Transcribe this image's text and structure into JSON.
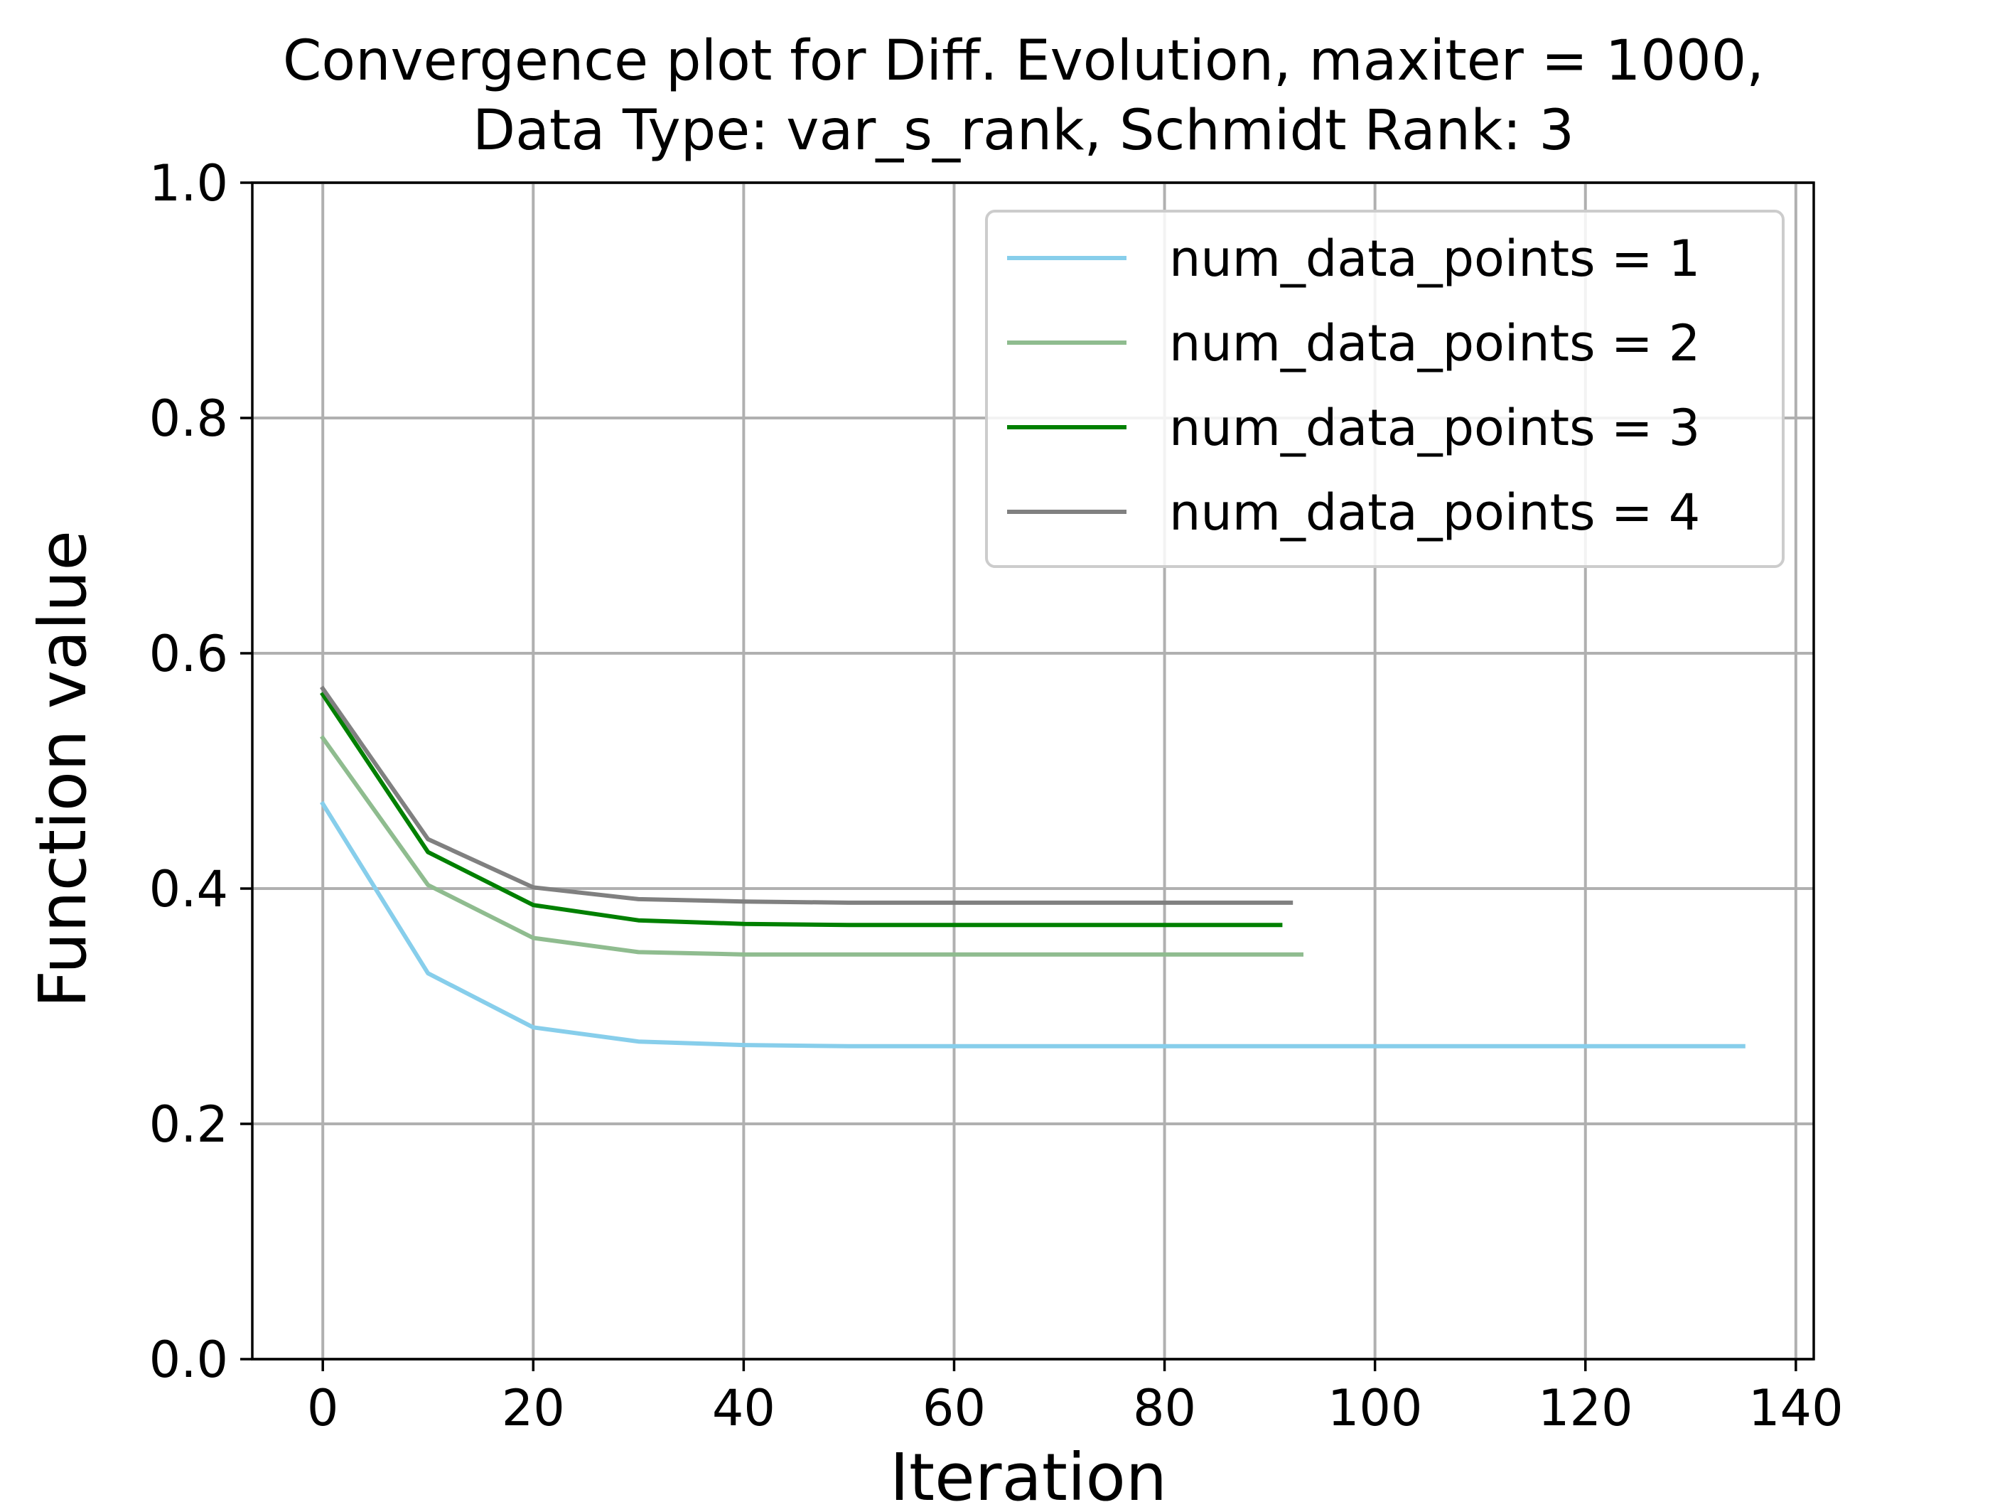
{
  "chart_data": {
    "type": "line",
    "title": "Convergence plot for Diff. Evolution, maxiter = 1000,",
    "subtitle": "Data Type: var_s_rank, Schmidt Rank: 3",
    "xlabel": "Iteration",
    "ylabel": "Function value",
    "xlim": [
      -6.7,
      141.7
    ],
    "ylim": [
      0,
      1
    ],
    "xticks": [
      0,
      20,
      40,
      60,
      80,
      100,
      120,
      140
    ],
    "xtick_labels": [
      "0",
      "20",
      "40",
      "60",
      "80",
      "100",
      "120",
      "140"
    ],
    "yticks": [
      0,
      0.2,
      0.4,
      0.6,
      0.8,
      1
    ],
    "ytick_labels": [
      "0.0",
      "0.2",
      "0.4",
      "0.6",
      "0.8",
      "1.0"
    ],
    "grid": true,
    "legend_position": "top-right",
    "series": [
      {
        "name": "num_data_points = 1",
        "color": "#87ceeb",
        "x": [
          0,
          10,
          20,
          30,
          40,
          50,
          60,
          70,
          80,
          90,
          100,
          110,
          120,
          130,
          135
        ],
        "y": [
          0.472,
          0.328,
          0.282,
          0.27,
          0.267,
          0.266,
          0.266,
          0.266,
          0.266,
          0.266,
          0.266,
          0.266,
          0.266,
          0.266,
          0.266
        ]
      },
      {
        "name": "num_data_points = 2",
        "color": "#8fbc8f",
        "x": [
          0,
          10,
          20,
          30,
          40,
          50,
          60,
          70,
          80,
          90,
          93
        ],
        "y": [
          0.528,
          0.403,
          0.358,
          0.346,
          0.344,
          0.344,
          0.344,
          0.344,
          0.344,
          0.344,
          0.344
        ]
      },
      {
        "name": "num_data_points = 3",
        "color": "#008000",
        "x": [
          0,
          10,
          20,
          30,
          40,
          50,
          60,
          70,
          80,
          91
        ],
        "y": [
          0.565,
          0.431,
          0.386,
          0.373,
          0.37,
          0.369,
          0.369,
          0.369,
          0.369,
          0.369
        ]
      },
      {
        "name": "num_data_points = 4",
        "color": "#808080",
        "x": [
          0,
          10,
          20,
          30,
          40,
          50,
          60,
          70,
          80,
          92
        ],
        "y": [
          0.57,
          0.442,
          0.401,
          0.391,
          0.389,
          0.388,
          0.388,
          0.388,
          0.388,
          0.388
        ]
      }
    ]
  }
}
